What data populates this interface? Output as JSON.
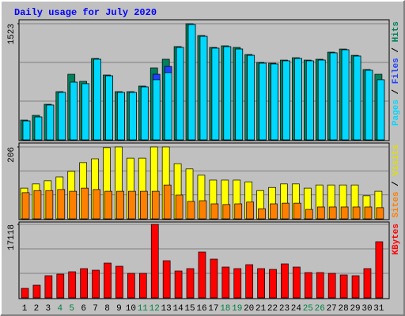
{
  "chart_data": [
    {
      "type": "bar",
      "title": "Daily usage for July 2020",
      "ylim": [
        0,
        1523
      ],
      "yticks": [
        1523
      ],
      "grid_divisions": 3,
      "legend_separator": "/",
      "series": [
        {
          "name": "Hits",
          "color": "#00805c",
          "values": [
            259,
            321,
            466,
            632,
            860,
            767,
            1067,
            850,
            632,
            632,
            705,
            943,
            1057,
            1223,
            1523,
            1368,
            1212,
            1233,
            1212,
            1119,
            1015,
            1005,
            1046,
            1077,
            1046,
            1057,
            1150,
            1191,
            1108,
            922,
            860
          ]
        },
        {
          "name": "Files",
          "color": "#2040ff",
          "values": [
            248,
            300,
            456,
            622,
            756,
            736,
            1057,
            839,
            622,
            622,
            694,
            860,
            963,
            1212,
            1512,
            1357,
            1202,
            1222,
            1191,
            1108,
            1005,
            995,
            1036,
            1067,
            1036,
            1046,
            1140,
            1181,
            1098,
            912,
            788
          ]
        },
        {
          "name": "Pages",
          "color": "#00d8ff",
          "values": [
            248,
            300,
            456,
            622,
            756,
            736,
            1057,
            839,
            622,
            622,
            694,
            788,
            881,
            1212,
            1512,
            1357,
            1202,
            1222,
            1191,
            1108,
            1005,
            995,
            1036,
            1067,
            1036,
            1046,
            1140,
            1181,
            1098,
            912,
            788
          ]
        }
      ]
    },
    {
      "type": "bar",
      "ylim": [
        0,
        206
      ],
      "yticks": [
        206
      ],
      "grid_divisions": 3,
      "legend_separator": "/",
      "series": [
        {
          "name": "Visits",
          "color": "#ffff00",
          "values": [
            88,
            100,
            109,
            120,
            136,
            161,
            172,
            204,
            206,
            174,
            174,
            206,
            206,
            158,
            143,
            125,
            111,
            111,
            111,
            106,
            81,
            90,
            100,
            100,
            88,
            97,
            97,
            97,
            97,
            66,
            79
          ]
        },
        {
          "name": "Sites",
          "color": "#ff8000",
          "values": [
            75,
            81,
            81,
            84,
            79,
            88,
            84,
            79,
            79,
            79,
            79,
            79,
            97,
            68,
            50,
            52,
            43,
            41,
            43,
            48,
            29,
            43,
            45,
            45,
            27,
            34,
            34,
            34,
            34,
            34,
            32
          ]
        }
      ]
    },
    {
      "type": "bar",
      "ylim": [
        0,
        17118
      ],
      "yticks": [
        17118
      ],
      "grid_divisions": 3,
      "categories": [
        "1",
        "2",
        "3",
        "4",
        "5",
        "6",
        "7",
        "8",
        "9",
        "10",
        "11",
        "12",
        "13",
        "14",
        "15",
        "16",
        "17",
        "18",
        "19",
        "20",
        "21",
        "22",
        "23",
        "24",
        "25",
        "26",
        "27",
        "28",
        "29",
        "30",
        "31"
      ],
      "category_colors": [
        "#000000",
        "#000000",
        "#000000",
        "#008040",
        "#008040",
        "#000000",
        "#000000",
        "#000000",
        "#000000",
        "#000000",
        "#008040",
        "#008040",
        "#000000",
        "#000000",
        "#000000",
        "#000000",
        "#000000",
        "#008040",
        "#008040",
        "#000000",
        "#000000",
        "#000000",
        "#000000",
        "#000000",
        "#008040",
        "#008040",
        "#000000",
        "#000000",
        "#000000",
        "#000000",
        "#000000"
      ],
      "series": [
        {
          "name": "KBytes",
          "color": "#ff0000",
          "values": [
            2208,
            2945,
            5154,
            5522,
            6075,
            6811,
            6443,
            8099,
            7363,
            5706,
            5706,
            17118,
            8652,
            6259,
            6811,
            10677,
            9020,
            7179,
            6811,
            7731,
            6811,
            6627,
            7915,
            7179,
            5890,
            5890,
            5706,
            5338,
            5154,
            6811,
            13070
          ]
        }
      ]
    }
  ]
}
